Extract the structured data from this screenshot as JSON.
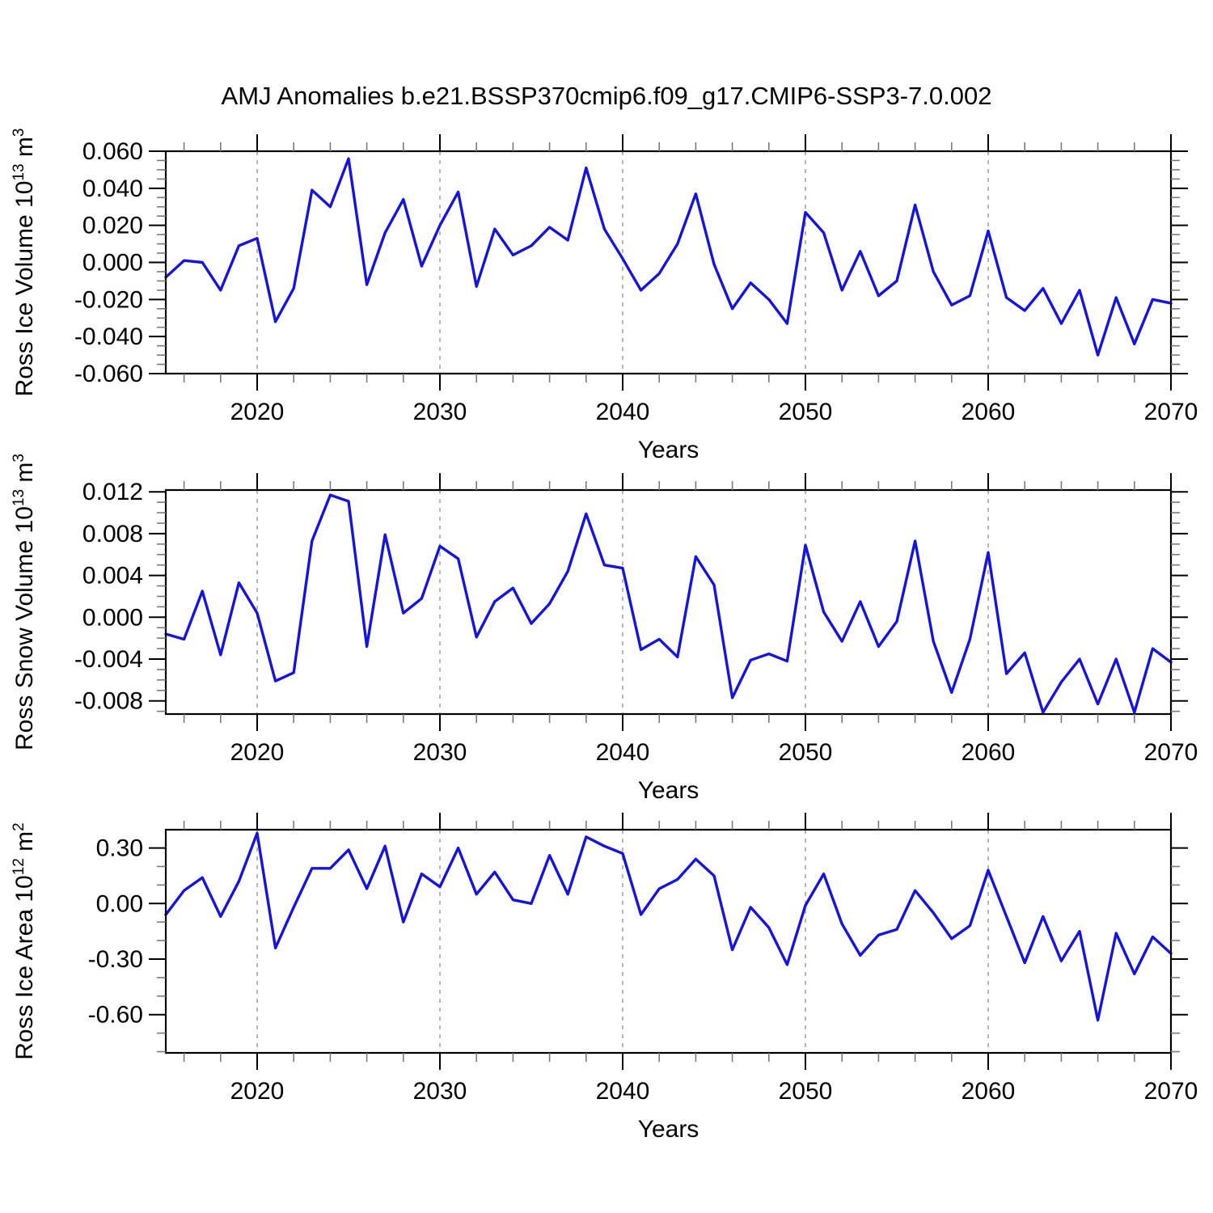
{
  "figure": {
    "title": "AMJ Anomalies b.e21.BSSP370cmip6.f09_g17.CMIP6-SSP3-7.0.002",
    "background_color": "#ffffff",
    "line_color": "#1414e0",
    "grid_color": "#a6a6a6",
    "axis_color": "#000000"
  },
  "years": [
    2015,
    2016,
    2017,
    2018,
    2019,
    2020,
    2021,
    2022,
    2023,
    2024,
    2025,
    2026,
    2027,
    2028,
    2029,
    2030,
    2031,
    2032,
    2033,
    2034,
    2035,
    2036,
    2037,
    2038,
    2039,
    2040,
    2041,
    2042,
    2043,
    2044,
    2045,
    2046,
    2047,
    2048,
    2049,
    2050,
    2051,
    2052,
    2053,
    2054,
    2055,
    2056,
    2057,
    2058,
    2059,
    2060,
    2061,
    2062,
    2063,
    2064,
    2065,
    2066,
    2067,
    2068,
    2069,
    2070
  ],
  "chart_data": [
    {
      "type": "line",
      "title": "",
      "xlabel": "Years",
      "ylabel": "Ross Ice Volume 10^13 m^3",
      "ylabel_segments": [
        {
          "t": "Ross Ice Volume 10"
        },
        {
          "t": "13",
          "sup": true
        },
        {
          "t": " m"
        },
        {
          "t": "3",
          "sup": true
        }
      ],
      "x_start": 2015,
      "x_end": 2070,
      "xlim": [
        2015,
        2070
      ],
      "ylim": [
        -0.06,
        0.06
      ],
      "values": [
        -0.008,
        0.001,
        0.0,
        -0.015,
        0.009,
        0.013,
        -0.032,
        -0.014,
        0.039,
        0.03,
        0.056,
        -0.012,
        0.016,
        0.034,
        -0.002,
        0.02,
        0.038,
        -0.013,
        0.018,
        0.004,
        0.009,
        0.019,
        0.012,
        0.051,
        0.018,
        0.002,
        -0.015,
        -0.006,
        0.01,
        0.037,
        -0.001,
        -0.025,
        -0.011,
        -0.02,
        -0.033,
        0.027,
        0.016,
        -0.015,
        0.006,
        -0.018,
        -0.01,
        0.031,
        -0.005,
        -0.023,
        -0.018,
        0.017,
        -0.019,
        -0.026,
        -0.014,
        -0.033,
        -0.015,
        -0.05,
        -0.019,
        -0.044,
        -0.02,
        -0.022
      ],
      "yticks": {
        "values": [
          0.06,
          0.04,
          0.02,
          0.0,
          -0.02,
          -0.04,
          -0.06
        ],
        "labels": [
          "0.060",
          "0.040",
          "0.020",
          "0.000",
          "-0.020",
          "-0.040",
          "-0.060"
        ],
        "minor_step": 0.005
      },
      "xticks": {
        "values": [
          2020,
          2030,
          2040,
          2050,
          2060,
          2070
        ],
        "labels": [
          "2020",
          "2030",
          "2040",
          "2050",
          "2060",
          "2070"
        ],
        "minor_step": 2
      },
      "gridlines_x": [
        2020,
        2030,
        2040,
        2050,
        2060
      ],
      "grid_style": "vertical-dashed",
      "legend": "off"
    },
    {
      "type": "line",
      "title": "",
      "xlabel": "Years",
      "ylabel": "Ross Snow Volume 10^13 m^3",
      "ylabel_segments": [
        {
          "t": "Ross Snow Volume 10"
        },
        {
          "t": "13",
          "sup": true
        },
        {
          "t": " m"
        },
        {
          "t": "3",
          "sup": true
        }
      ],
      "x_start": 2015,
      "x_end": 2070,
      "xlim": [
        2015,
        2070
      ],
      "ylim": [
        -0.00926,
        0.01217
      ],
      "values": [
        -0.0016,
        -0.0021,
        0.0025,
        -0.0036,
        0.0033,
        0.0004,
        -0.0061,
        -0.0053,
        0.0073,
        0.0117,
        0.0111,
        -0.0028,
        0.0079,
        0.0004,
        0.0018,
        0.0068,
        0.0056,
        -0.0019,
        0.0015,
        0.0028,
        -0.0006,
        0.0013,
        0.0044,
        0.0099,
        0.005,
        0.0047,
        -0.0031,
        -0.0021,
        -0.0038,
        0.0058,
        0.0031,
        -0.0077,
        -0.0041,
        -0.0035,
        -0.0042,
        0.0069,
        0.0005,
        -0.0023,
        0.0015,
        -0.0028,
        -0.0004,
        0.0073,
        -0.0023,
        -0.0072,
        -0.0021,
        0.0062,
        -0.0054,
        -0.0034,
        -0.0091,
        -0.0062,
        -0.004,
        -0.0083,
        -0.004,
        -0.0091,
        -0.003,
        -0.0043
      ],
      "yticks": {
        "values": [
          0.012,
          0.008,
          0.004,
          0.0,
          -0.004,
          -0.008
        ],
        "labels": [
          "0.012",
          "0.008",
          "0.004",
          "0.000",
          "-0.004",
          "-0.008"
        ],
        "minor_step": 0.001
      },
      "xticks": {
        "values": [
          2020,
          2030,
          2040,
          2050,
          2060,
          2070
        ],
        "labels": [
          "2020",
          "2030",
          "2040",
          "2050",
          "2060",
          "2070"
        ],
        "minor_step": 2
      },
      "gridlines_x": [
        2020,
        2030,
        2040,
        2050,
        2060
      ],
      "grid_style": "vertical-dashed",
      "legend": "off"
    },
    {
      "type": "line",
      "title": "",
      "xlabel": "Years",
      "ylabel": "Ross Ice Area 10^12 m^2",
      "ylabel_segments": [
        {
          "t": "Ross Ice Area 10"
        },
        {
          "t": "12",
          "sup": true
        },
        {
          "t": " m"
        },
        {
          "t": "2",
          "sup": true
        }
      ],
      "x_start": 2015,
      "x_end": 2070,
      "xlim": [
        2015,
        2070
      ],
      "ylim": [
        -0.8066,
        0.3987
      ],
      "values": [
        -0.06,
        0.07,
        0.14,
        -0.07,
        0.12,
        0.38,
        -0.24,
        -0.02,
        0.19,
        0.19,
        0.29,
        0.08,
        0.31,
        -0.1,
        0.16,
        0.09,
        0.3,
        0.05,
        0.17,
        0.02,
        0.0,
        0.26,
        0.05,
        0.36,
        0.31,
        0.27,
        -0.06,
        0.08,
        0.13,
        0.24,
        0.15,
        -0.25,
        -0.02,
        -0.13,
        -0.33,
        -0.01,
        0.16,
        -0.11,
        -0.28,
        -0.17,
        -0.14,
        0.07,
        -0.05,
        -0.19,
        -0.12,
        0.18,
        -0.07,
        -0.32,
        -0.07,
        -0.31,
        -0.15,
        -0.63,
        -0.16,
        -0.38,
        -0.18,
        -0.27
      ],
      "yticks": {
        "values": [
          0.3,
          0.0,
          -0.3,
          -0.6
        ],
        "labels": [
          "0.30",
          "0.00",
          "-0.30",
          "-0.60"
        ],
        "minor_step": 0.1
      },
      "xticks": {
        "values": [
          2020,
          2030,
          2040,
          2050,
          2060,
          2070
        ],
        "labels": [
          "2020",
          "2030",
          "2040",
          "2050",
          "2060",
          "2070"
        ],
        "minor_step": 2
      },
      "gridlines_x": [
        2020,
        2030,
        2040,
        2050,
        2060
      ],
      "grid_style": "vertical-dashed",
      "legend": "off"
    }
  ]
}
